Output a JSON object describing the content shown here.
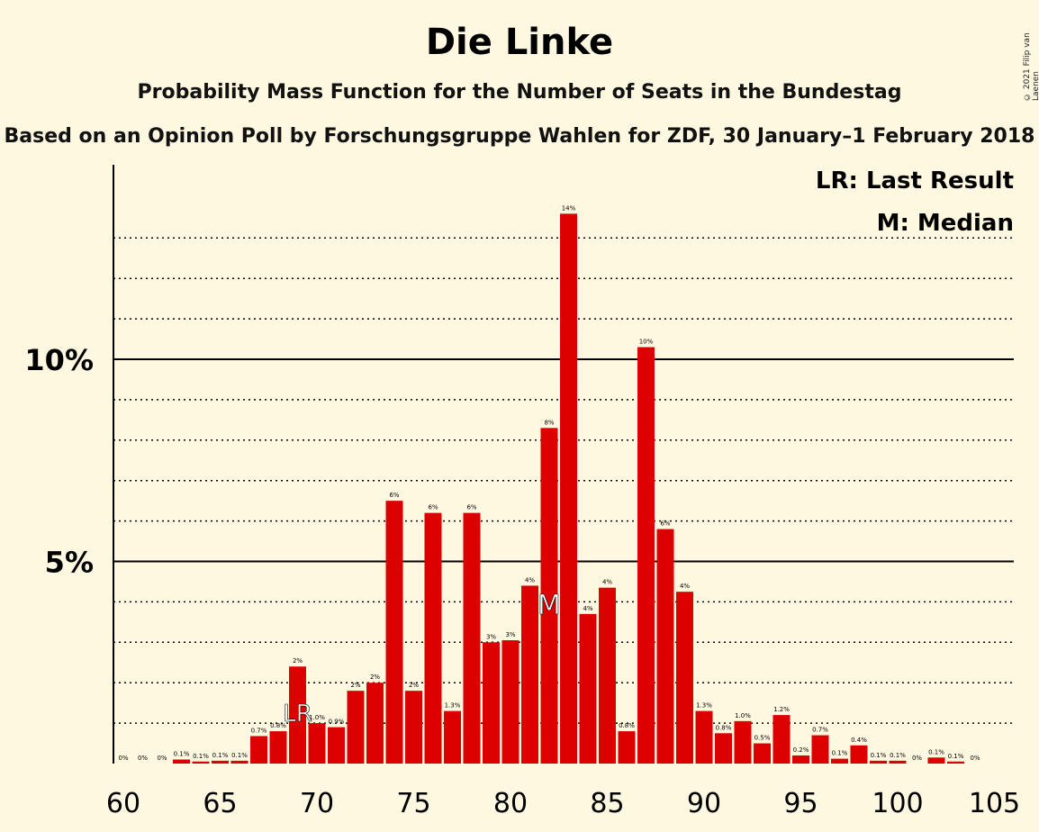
{
  "title": "Die Linke",
  "subtitle": "Probability Mass Function for the Number of Seats in the Bundestag",
  "subtitle2": "Based on an Opinion Poll by Forschungsgruppe Wahlen for ZDF, 30 January–1 February 2018",
  "copyright": "© 2021 Filip van Laenen",
  "legend": {
    "lr": "LR: Last Result",
    "median": "M: Median"
  },
  "colors": {
    "bar": "#dd0000",
    "background": "#fff8e1"
  },
  "chart_data": {
    "type": "bar",
    "x": [
      60,
      61,
      62,
      63,
      64,
      65,
      66,
      67,
      68,
      69,
      70,
      71,
      72,
      73,
      74,
      75,
      76,
      77,
      78,
      79,
      80,
      81,
      82,
      83,
      84,
      85,
      86,
      87,
      88,
      89,
      90,
      91,
      92,
      93,
      94,
      95,
      96,
      97,
      98,
      99,
      100,
      101,
      102,
      103,
      104
    ],
    "values": [
      0,
      0,
      0,
      0.1,
      0.05,
      0.07,
      0.07,
      0.68,
      0.8,
      2.4,
      1.0,
      0.9,
      1.8,
      2.0,
      6.5,
      1.8,
      6.2,
      1.3,
      6.2,
      3.0,
      3.05,
      4.4,
      8.3,
      13.6,
      3.7,
      4.35,
      0.8,
      10.3,
      5.8,
      4.25,
      1.3,
      0.75,
      1.05,
      0.5,
      1.2,
      0.2,
      0.7,
      0.12,
      0.45,
      0.07,
      0.07,
      0,
      0.15,
      0.05,
      0
    ],
    "labels": [
      "0%",
      "0%",
      "0%",
      "0.1%",
      "0.1%",
      "0.1%",
      "0.1%",
      "0.7%",
      "0.8%",
      "2%",
      "1.0%",
      "0.9%",
      "2%",
      "2%",
      "6%",
      "2%",
      "6%",
      "1.3%",
      "6%",
      "3%",
      "3%",
      "4%",
      "8%",
      "14%",
      "4%",
      "4%",
      "0.8%",
      "10%",
      "6%",
      "4%",
      "1.3%",
      "0.8%",
      "1.0%",
      "0.5%",
      "1.2%",
      "0.2%",
      "0.7%",
      "0.1%",
      "0.4%",
      "0.1%",
      "0.1%",
      "0%",
      "0.1%",
      "0.1%",
      "0%"
    ],
    "xticks": [
      60,
      65,
      70,
      75,
      80,
      85,
      90,
      95,
      100,
      105
    ],
    "xtick_labels": [
      "60",
      "65",
      "70",
      "75",
      "80",
      "85",
      "90",
      "95",
      "100",
      "105"
    ],
    "yticks": [
      5,
      10
    ],
    "ytick_labels": [
      "5%",
      "10%"
    ],
    "ylim": [
      0,
      14.5
    ],
    "grid": "dotted every 1%",
    "last_result": 69,
    "last_result_marker": "LR",
    "median": 82,
    "median_marker": "M",
    "legend_position": "top-right"
  }
}
